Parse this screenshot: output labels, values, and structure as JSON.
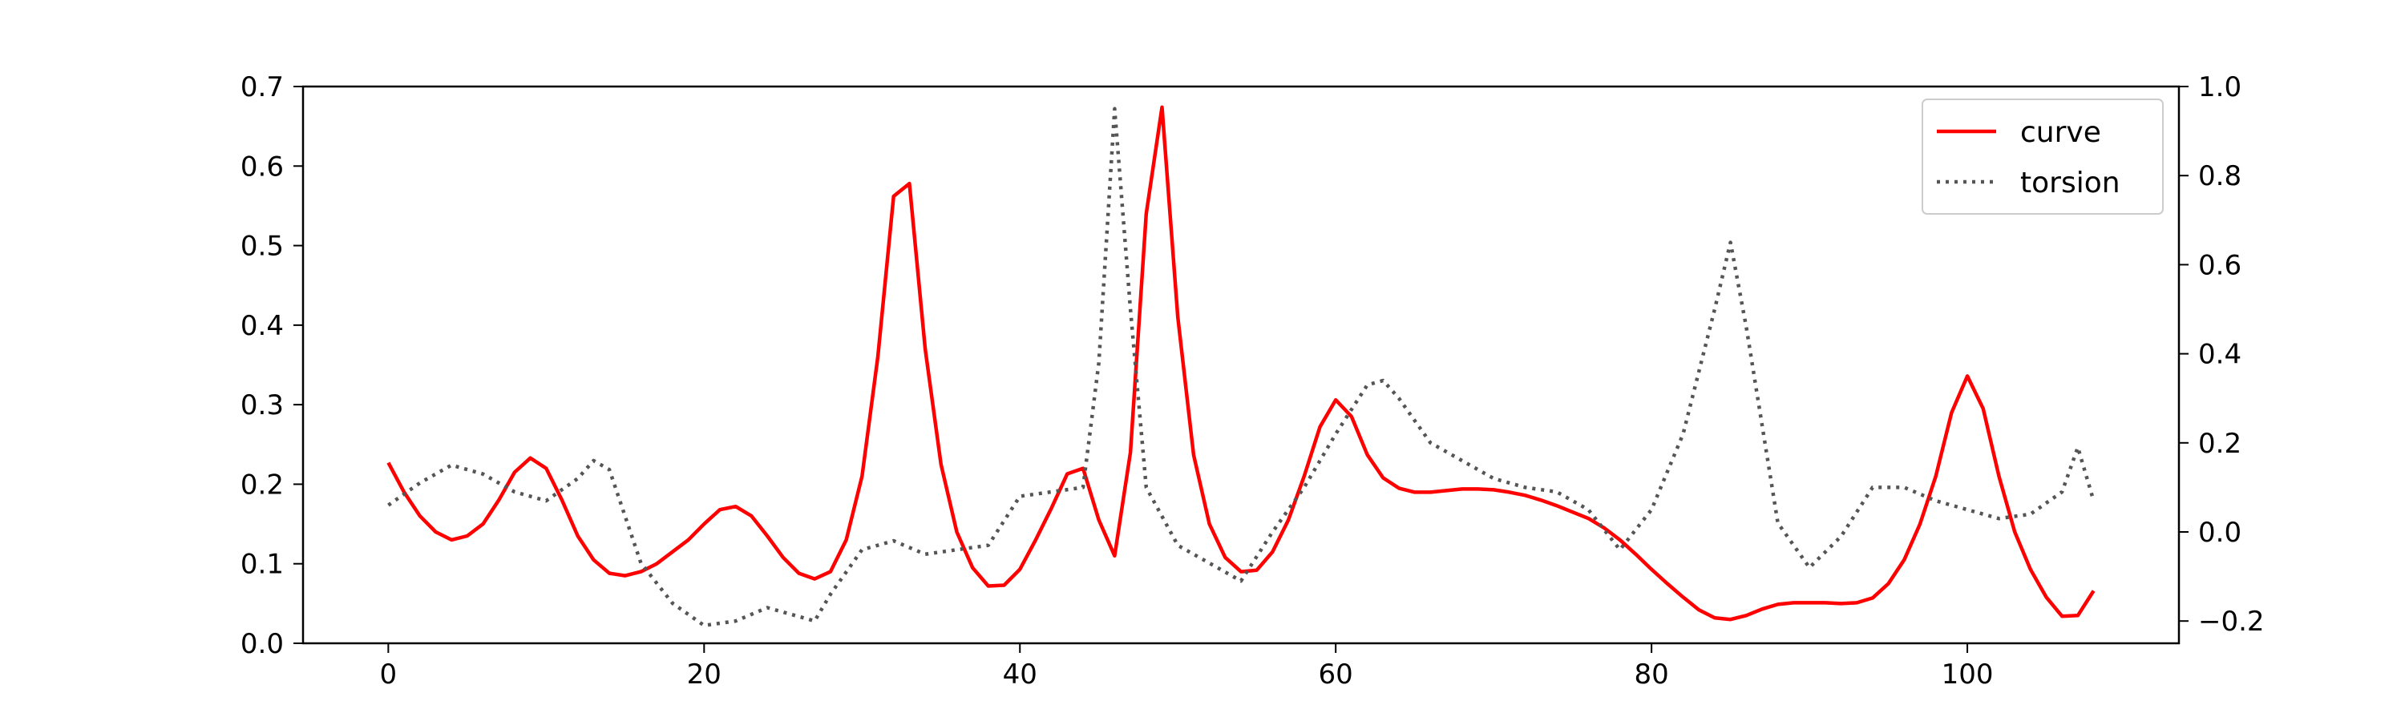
{
  "chart_data": {
    "type": "line",
    "title": "",
    "xlabel": "",
    "ylabel": "",
    "y2label": "",
    "xlim": [
      -5.4,
      113.4
    ],
    "ylim": [
      0,
      0.7
    ],
    "y2lim": [
      -0.25,
      1.0
    ],
    "xticks": [
      0,
      20,
      40,
      60,
      80,
      100
    ],
    "yticks": [
      0.0,
      0.1,
      0.2,
      0.3,
      0.4,
      0.5,
      0.6,
      0.7
    ],
    "y2ticks": [
      -0.2,
      0.0,
      0.2,
      0.4,
      0.6,
      0.8,
      1.0
    ],
    "grid": false,
    "legend_position": "top-right",
    "series": [
      {
        "name": "curve",
        "axis": "left",
        "color": "#ff0000",
        "style": "solid",
        "x": [
          0,
          1,
          2,
          3,
          4,
          5,
          6,
          7,
          8,
          9,
          10,
          11,
          12,
          13,
          14,
          15,
          16,
          17,
          18,
          19,
          20,
          21,
          22,
          23,
          24,
          25,
          26,
          27,
          28,
          29,
          30,
          31,
          32,
          33,
          34,
          35,
          36,
          37,
          38,
          39,
          40,
          41,
          42,
          43,
          44,
          45,
          46,
          47,
          48,
          49,
          50,
          51,
          52,
          53,
          54,
          55,
          56,
          57,
          58,
          59,
          60,
          61,
          62,
          63,
          64,
          65,
          66,
          67,
          68,
          69,
          70,
          71,
          72,
          73,
          74,
          75,
          76,
          77,
          78,
          79,
          80,
          81,
          82,
          83,
          84,
          85,
          86,
          87,
          88,
          89,
          90,
          91,
          92,
          93,
          94,
          95,
          96,
          97,
          98,
          99,
          100,
          101,
          102,
          103,
          104,
          105,
          106,
          107,
          108
        ],
        "y": [
          0.227,
          0.19,
          0.16,
          0.14,
          0.13,
          0.135,
          0.15,
          0.18,
          0.215,
          0.233,
          0.22,
          0.18,
          0.135,
          0.105,
          0.088,
          0.085,
          0.09,
          0.1,
          0.115,
          0.13,
          0.15,
          0.168,
          0.172,
          0.16,
          0.135,
          0.108,
          0.088,
          0.081,
          0.09,
          0.13,
          0.21,
          0.36,
          0.562,
          0.578,
          0.37,
          0.225,
          0.14,
          0.095,
          0.072,
          0.073,
          0.093,
          0.13,
          0.17,
          0.213,
          0.22,
          0.155,
          0.11,
          0.24,
          0.54,
          0.674,
          0.41,
          0.237,
          0.15,
          0.108,
          0.09,
          0.092,
          0.115,
          0.155,
          0.21,
          0.272,
          0.306,
          0.285,
          0.237,
          0.208,
          0.195,
          0.19,
          0.19,
          0.192,
          0.194,
          0.194,
          0.193,
          0.19,
          0.186,
          0.18,
          0.173,
          0.165,
          0.157,
          0.145,
          0.13,
          0.112,
          0.093,
          0.075,
          0.058,
          0.042,
          0.032,
          0.03,
          0.035,
          0.043,
          0.049,
          0.051,
          0.051,
          0.051,
          0.05,
          0.051,
          0.057,
          0.075,
          0.105,
          0.15,
          0.21,
          0.29,
          0.336,
          0.295,
          0.21,
          0.14,
          0.093,
          0.058,
          0.034,
          0.035,
          0.066
        ]
      },
      {
        "name": "torsion",
        "axis": "right",
        "color": "#555555",
        "style": "dotted",
        "x": [
          0,
          2,
          4,
          6,
          8,
          10,
          12,
          13,
          14,
          16,
          18,
          20,
          22,
          24,
          26,
          27,
          28,
          30,
          32,
          34,
          36,
          38,
          40,
          42,
          44,
          45,
          46,
          47,
          48,
          50,
          52,
          54,
          56,
          58,
          60,
          62,
          63,
          64,
          66,
          68,
          70,
          72,
          74,
          76,
          78,
          80,
          82,
          84,
          85,
          86,
          88,
          90,
          92,
          94,
          96,
          98,
          100,
          102,
          104,
          106,
          107,
          108
        ],
        "y": [
          0.06,
          0.11,
          0.15,
          0.13,
          0.09,
          0.07,
          0.12,
          0.16,
          0.14,
          -0.07,
          -0.16,
          -0.21,
          -0.2,
          -0.17,
          -0.19,
          -0.2,
          -0.14,
          -0.04,
          -0.02,
          -0.05,
          -0.04,
          -0.03,
          0.08,
          0.09,
          0.1,
          0.38,
          0.95,
          0.5,
          0.1,
          -0.03,
          -0.07,
          -0.11,
          0.0,
          0.1,
          0.22,
          0.33,
          0.34,
          0.3,
          0.2,
          0.16,
          0.12,
          0.1,
          0.09,
          0.05,
          -0.04,
          0.05,
          0.22,
          0.5,
          0.65,
          0.46,
          0.02,
          -0.08,
          -0.01,
          0.1,
          0.1,
          0.07,
          0.05,
          0.03,
          0.04,
          0.09,
          0.19,
          0.07
        ]
      }
    ]
  }
}
